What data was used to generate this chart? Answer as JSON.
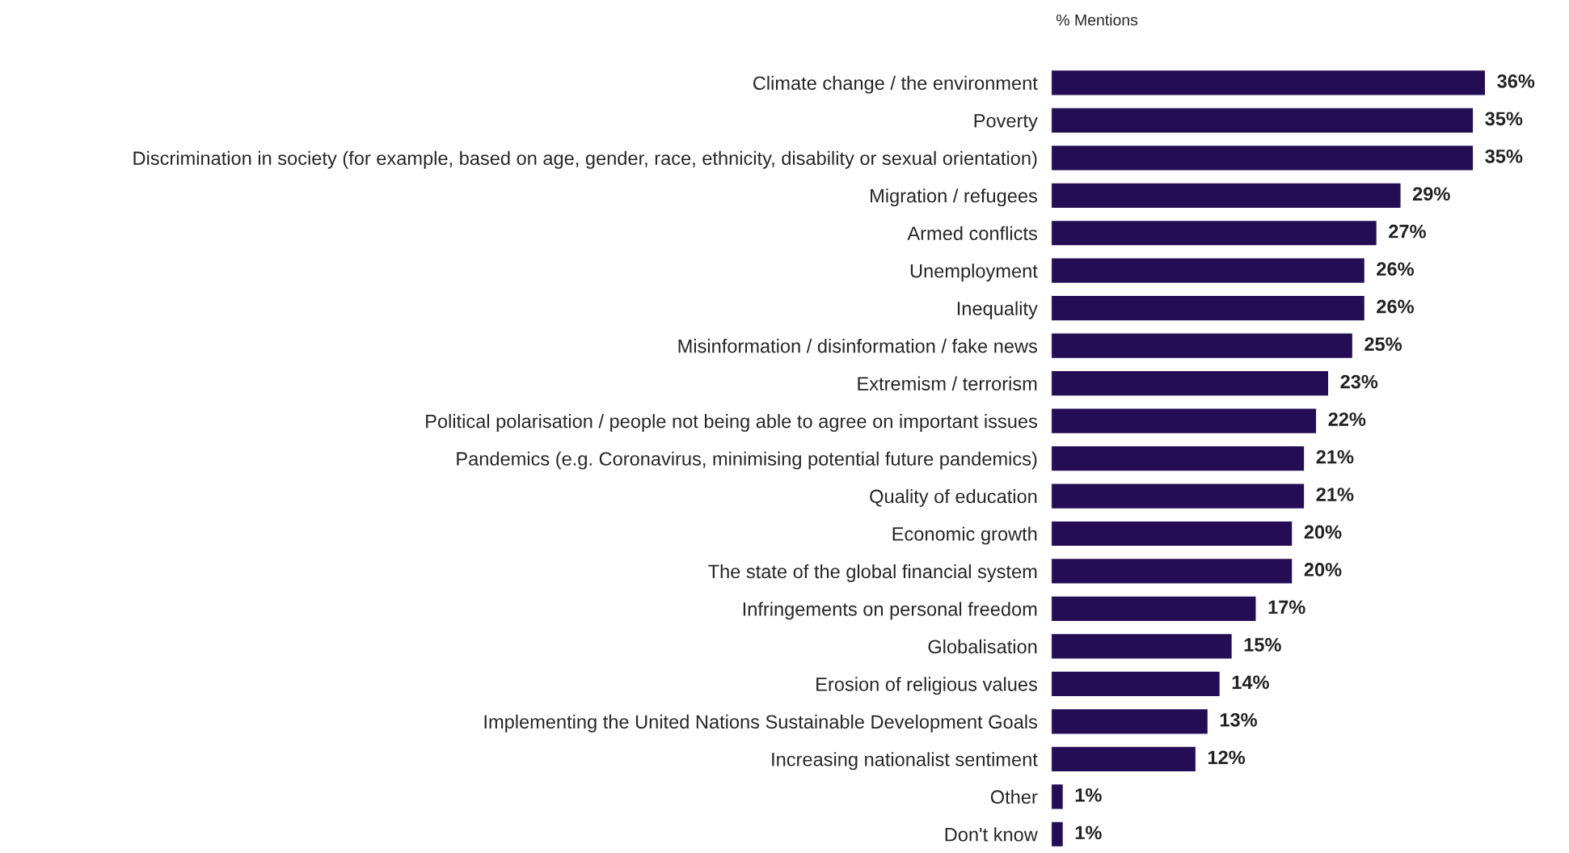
{
  "chart_data": {
    "type": "bar",
    "orientation": "horizontal",
    "title": "% Mentions",
    "categories": [
      "Climate change / the environment",
      "Poverty",
      "Discrimination in society (for example, based on age, gender, race, ethnicity, disability or sexual orientation)",
      "Migration / refugees",
      "Armed conflicts",
      "Unemployment",
      "Inequality",
      "Misinformation / disinformation / fake news",
      "Extremism / terrorism",
      "Political polarisation / people not being able to agree on important issues",
      "Pandemics (e.g. Coronavirus, minimising potential future pandemics)",
      "Quality of education",
      "Economic growth",
      "The state of the global financial system",
      "Infringements on personal freedom",
      "Globalisation",
      "Erosion of religious values",
      "Implementing the United Nations Sustainable Development Goals",
      "Increasing nationalist sentiment",
      "Other",
      "Don't know"
    ],
    "values": [
      36,
      35,
      35,
      29,
      27,
      26,
      26,
      25,
      23,
      22,
      21,
      21,
      20,
      20,
      17,
      15,
      14,
      13,
      12,
      1,
      1
    ],
    "value_labels": [
      "36%",
      "35%",
      "35%",
      "29%",
      "27%",
      "26%",
      "26%",
      "25%",
      "23%",
      "22%",
      "21%",
      "21%",
      "20%",
      "20%",
      "17%",
      "15%",
      "14%",
      "13%",
      "12%",
      "1%",
      "1%"
    ],
    "color": "#250d55",
    "grid": false,
    "legend": false
  }
}
